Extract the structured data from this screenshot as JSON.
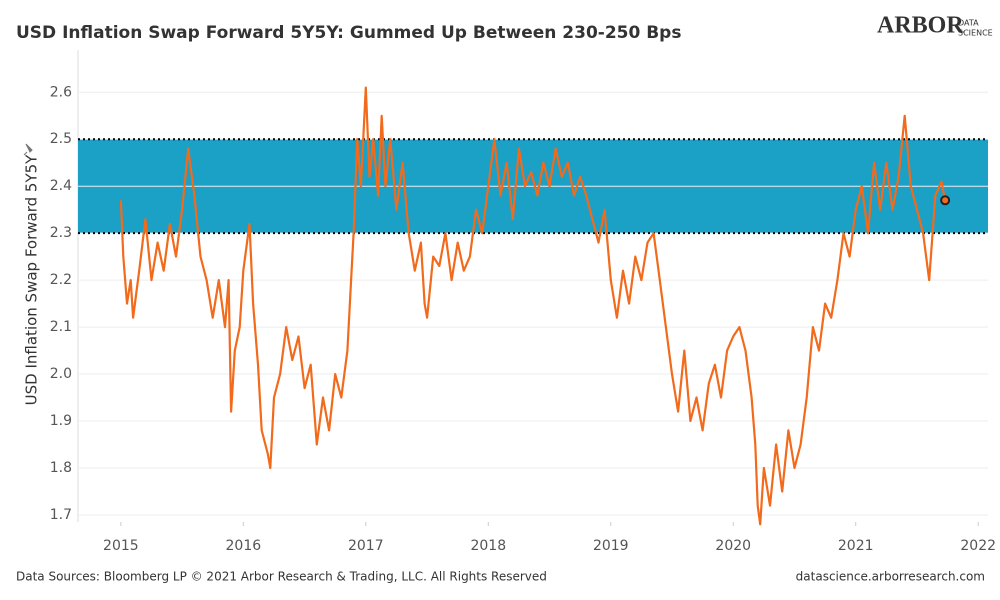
{
  "chart_data": {
    "type": "line",
    "title": "USD Inflation Swap Forward 5Y5Y: Gummed Up Between 230-250 Bps",
    "y_label": "USD Inflation Swap Forward 5Y5Y",
    "source": "Data Sources: Bloomberg LP © 2021 Arbor Research & Trading, LLC. All Rights Reserved",
    "website": "datascience.arborresearch.com",
    "logo": {
      "name": "ARBOR",
      "line1": "DATA",
      "line2": "SCIENCE"
    },
    "band": {
      "from": 2.3,
      "to": 2.5,
      "color": "#1ba0c6"
    },
    "grid": true,
    "xlim": [
      2014.65,
      2022.08
    ],
    "xticks": [
      2015,
      2016,
      2017,
      2018,
      2019,
      2020,
      2021,
      2022
    ],
    "ylim": [
      1.685,
      2.69
    ],
    "yticks": [
      {
        "value": 1.7,
        "label": "1.7"
      },
      {
        "value": 1.8,
        "label": "1.8"
      },
      {
        "value": 1.9,
        "label": "1.9"
      },
      {
        "value": 2.0,
        "label": "2.0"
      },
      {
        "value": 2.1,
        "label": "2.1"
      },
      {
        "value": 2.2,
        "label": "2.2"
      },
      {
        "value": 2.3,
        "label": "2.3"
      },
      {
        "value": 2.4,
        "label": "2.4"
      },
      {
        "value": 2.5,
        "label": "2.5"
      },
      {
        "value": 2.6,
        "label": "2.6"
      }
    ],
    "color": "#f26a1b",
    "x": [
      2015.0,
      2015.02,
      2015.05,
      2015.08,
      2015.1,
      2015.15,
      2015.2,
      2015.25,
      2015.3,
      2015.35,
      2015.4,
      2015.45,
      2015.5,
      2015.55,
      2015.6,
      2015.65,
      2015.7,
      2015.75,
      2015.8,
      2015.85,
      2015.88,
      2015.9,
      2015.93,
      2015.97,
      2016.0,
      2016.05,
      2016.08,
      2016.12,
      2016.15,
      2016.2,
      2016.22,
      2016.25,
      2016.3,
      2016.35,
      2016.4,
      2016.45,
      2016.5,
      2016.55,
      2016.6,
      2016.65,
      2016.7,
      2016.75,
      2016.8,
      2016.85,
      2016.88,
      2016.9,
      2016.93,
      2016.96,
      2017.0,
      2017.03,
      2017.06,
      2017.1,
      2017.13,
      2017.16,
      2017.2,
      2017.25,
      2017.3,
      2017.35,
      2017.4,
      2017.45,
      2017.48,
      2017.5,
      2017.55,
      2017.6,
      2017.65,
      2017.7,
      2017.75,
      2017.8,
      2017.85,
      2017.9,
      2017.95,
      2018.0,
      2018.05,
      2018.1,
      2018.15,
      2018.2,
      2018.25,
      2018.3,
      2018.35,
      2018.4,
      2018.45,
      2018.5,
      2018.55,
      2018.6,
      2018.65,
      2018.7,
      2018.75,
      2018.8,
      2018.85,
      2018.9,
      2018.95,
      2019.0,
      2019.05,
      2019.1,
      2019.15,
      2019.2,
      2019.25,
      2019.3,
      2019.35,
      2019.4,
      2019.45,
      2019.5,
      2019.55,
      2019.6,
      2019.65,
      2019.7,
      2019.75,
      2019.8,
      2019.85,
      2019.9,
      2019.95,
      2020.0,
      2020.05,
      2020.1,
      2020.15,
      2020.18,
      2020.2,
      2020.22,
      2020.25,
      2020.3,
      2020.35,
      2020.4,
      2020.45,
      2020.5,
      2020.55,
      2020.6,
      2020.65,
      2020.7,
      2020.75,
      2020.8,
      2020.85,
      2020.9,
      2020.95,
      2021.0,
      2021.05,
      2021.1,
      2021.15,
      2021.2,
      2021.25,
      2021.3,
      2021.35,
      2021.4,
      2021.45,
      2021.5,
      2021.55,
      2021.6,
      2021.65,
      2021.7,
      2021.73
    ],
    "values": [
      2.37,
      2.25,
      2.15,
      2.2,
      2.12,
      2.22,
      2.33,
      2.2,
      2.28,
      2.22,
      2.32,
      2.25,
      2.35,
      2.48,
      2.38,
      2.25,
      2.2,
      2.12,
      2.2,
      2.1,
      2.2,
      1.92,
      2.05,
      2.1,
      2.22,
      2.32,
      2.15,
      2.02,
      1.88,
      1.83,
      1.8,
      1.95,
      2.0,
      2.1,
      2.03,
      2.08,
      1.97,
      2.02,
      1.85,
      1.95,
      1.88,
      2.0,
      1.95,
      2.05,
      2.2,
      2.3,
      2.5,
      2.4,
      2.61,
      2.42,
      2.5,
      2.38,
      2.55,
      2.4,
      2.5,
      2.35,
      2.45,
      2.3,
      2.22,
      2.28,
      2.15,
      2.12,
      2.25,
      2.23,
      2.3,
      2.2,
      2.28,
      2.22,
      2.25,
      2.35,
      2.3,
      2.4,
      2.5,
      2.38,
      2.45,
      2.33,
      2.48,
      2.4,
      2.43,
      2.38,
      2.45,
      2.4,
      2.48,
      2.42,
      2.45,
      2.38,
      2.42,
      2.38,
      2.33,
      2.28,
      2.35,
      2.2,
      2.12,
      2.22,
      2.15,
      2.25,
      2.2,
      2.28,
      2.3,
      2.2,
      2.1,
      2.0,
      1.92,
      2.05,
      1.9,
      1.95,
      1.88,
      1.98,
      2.02,
      1.95,
      2.05,
      2.08,
      2.1,
      2.05,
      1.95,
      1.85,
      1.72,
      1.68,
      1.8,
      1.72,
      1.85,
      1.75,
      1.88,
      1.8,
      1.85,
      1.95,
      2.1,
      2.05,
      2.15,
      2.12,
      2.2,
      2.3,
      2.25,
      2.35,
      2.4,
      2.3,
      2.45,
      2.35,
      2.45,
      2.35,
      2.42,
      2.55,
      2.4,
      2.35,
      2.3,
      2.2,
      2.38,
      2.41,
      2.37
    ]
  }
}
